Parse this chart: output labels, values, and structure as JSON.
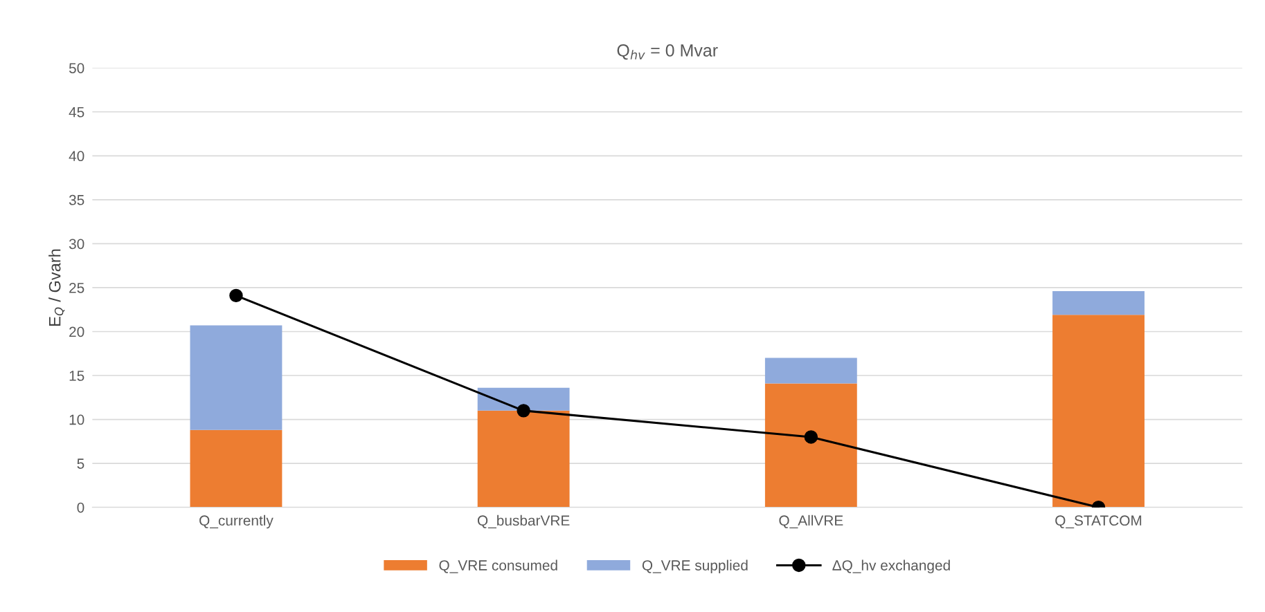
{
  "chart_data": {
    "type": "bar",
    "title": "Q$_{hv}$ = 0 Mvar",
    "ylabel": "E$_{Q}$ / Gvarh",
    "categories": [
      "Q_currently",
      "Q_busbarVRE",
      "Q_AllVRE",
      "Q_STATCOM"
    ],
    "stacked": true,
    "series": [
      {
        "name": "Q_VRE consumed",
        "color": "#ed7d31",
        "values": [
          8.8,
          11.0,
          14.1,
          21.9
        ]
      },
      {
        "name": "Q_VRE supplied",
        "color": "#8faadc",
        "values": [
          11.9,
          2.6,
          2.9,
          2.7
        ]
      },
      {
        "name": "ΔQ_hv exchanged",
        "type": "line",
        "color": "#000000",
        "values": [
          24.1,
          11.0,
          8.0,
          0
        ],
        "marker": "circle",
        "line_style": "solid"
      }
    ],
    "ylim": [
      0,
      50
    ],
    "yticks": [
      0,
      5,
      10,
      15,
      20,
      25,
      30,
      35,
      40,
      45,
      50
    ],
    "grid": "y",
    "legend": "bottom"
  }
}
